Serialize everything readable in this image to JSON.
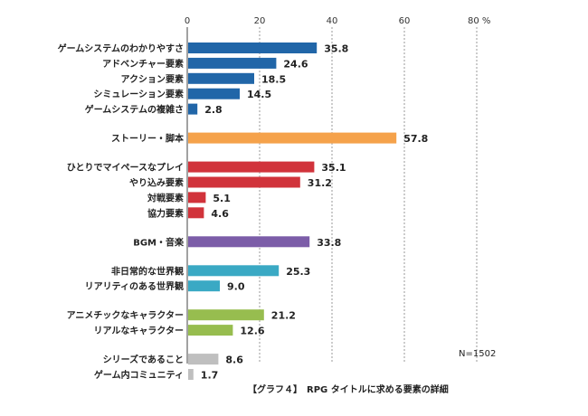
{
  "chart_data": {
    "type": "bar",
    "orientation": "horizontal",
    "title": "",
    "caption": "【グラフ４】　RPG タイトルに求める要素の詳細",
    "note": "N=1502",
    "x_ticks": [
      "0",
      "20",
      "40",
      "60",
      "80 %"
    ],
    "xlim": [
      0,
      80
    ],
    "groups": [
      {
        "color": "#2166a8",
        "items": [
          {
            "label": "ゲームシステムのわかりやすさ",
            "value": 35.8,
            "value_label": "35.8"
          },
          {
            "label": "アドベンチャー要素",
            "value": 24.6,
            "value_label": "24.6"
          },
          {
            "label": "アクション要素",
            "value": 18.5,
            "value_label": "18.5"
          },
          {
            "label": "シミュレーション要素",
            "value": 14.5,
            "value_label": "14.5"
          },
          {
            "label": "ゲームシステムの複雑さ",
            "value": 2.8,
            "value_label": "2.8"
          }
        ]
      },
      {
        "color": "#f5a24b",
        "items": [
          {
            "label": "ストーリー・脚本",
            "value": 57.8,
            "value_label": "57.8"
          }
        ]
      },
      {
        "color": "#d1333b",
        "items": [
          {
            "label": "ひとりでマイペースなプレイ",
            "value": 35.1,
            "value_label": "35.1"
          },
          {
            "label": "やり込み要素",
            "value": 31.2,
            "value_label": "31.2"
          },
          {
            "label": "対戦要素",
            "value": 5.1,
            "value_label": "5.1"
          },
          {
            "label": "協力要素",
            "value": 4.6,
            "value_label": "4.6"
          }
        ]
      },
      {
        "color": "#7c5da8",
        "items": [
          {
            "label": "BGM・音楽",
            "value": 33.8,
            "value_label": "33.8"
          }
        ]
      },
      {
        "color": "#3aa9c4",
        "items": [
          {
            "label": "非日常的な世界観",
            "value": 25.3,
            "value_label": "25.3"
          },
          {
            "label": "リアリティのある世界観",
            "value": 9.0,
            "value_label": "9.0"
          }
        ]
      },
      {
        "color": "#97bd4f",
        "items": [
          {
            "label": "アニメチックなキャラクター",
            "value": 21.2,
            "value_label": "21.2"
          },
          {
            "label": "リアルなキャラクター",
            "value": 12.6,
            "value_label": "12.6"
          }
        ]
      },
      {
        "color": "#bfbfbf",
        "items": [
          {
            "label": "シリーズであること",
            "value": 8.6,
            "value_label": "8.6"
          },
          {
            "label": "ゲーム内コミュニティ",
            "value": 1.7,
            "value_label": "1.7"
          }
        ]
      }
    ]
  }
}
